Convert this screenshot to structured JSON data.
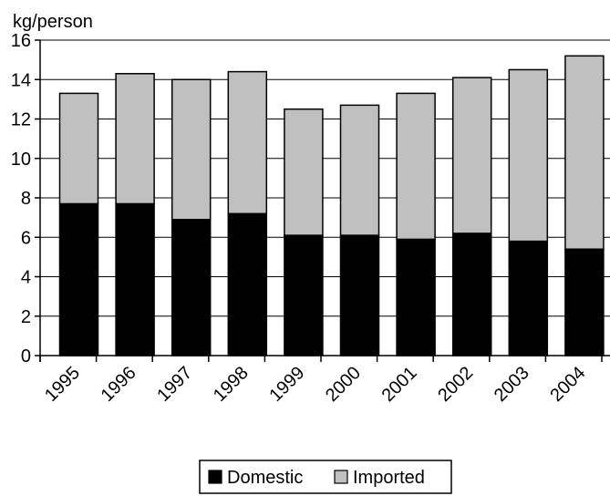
{
  "chart_data": {
    "type": "bar",
    "stacked": true,
    "ylabel": "kg/person",
    "ylim": [
      0,
      16
    ],
    "yticks": [
      0,
      2,
      4,
      6,
      8,
      10,
      12,
      14,
      16
    ],
    "grid": "horizontal",
    "legend_position": "bottom",
    "categories": [
      "1995",
      "1996",
      "1997",
      "1998",
      "1999",
      "2000",
      "2001",
      "2002",
      "2003",
      "2004"
    ],
    "series": [
      {
        "name": "Domestic",
        "color": "#000000",
        "values": [
          7.7,
          7.7,
          6.9,
          7.2,
          6.1,
          6.1,
          5.9,
          6.2,
          5.8,
          5.4
        ]
      },
      {
        "name": "Imported",
        "color": "#c0c0c0",
        "values": [
          5.6,
          6.6,
          7.1,
          7.2,
          6.4,
          6.6,
          7.4,
          7.9,
          8.7,
          9.8
        ]
      }
    ]
  }
}
